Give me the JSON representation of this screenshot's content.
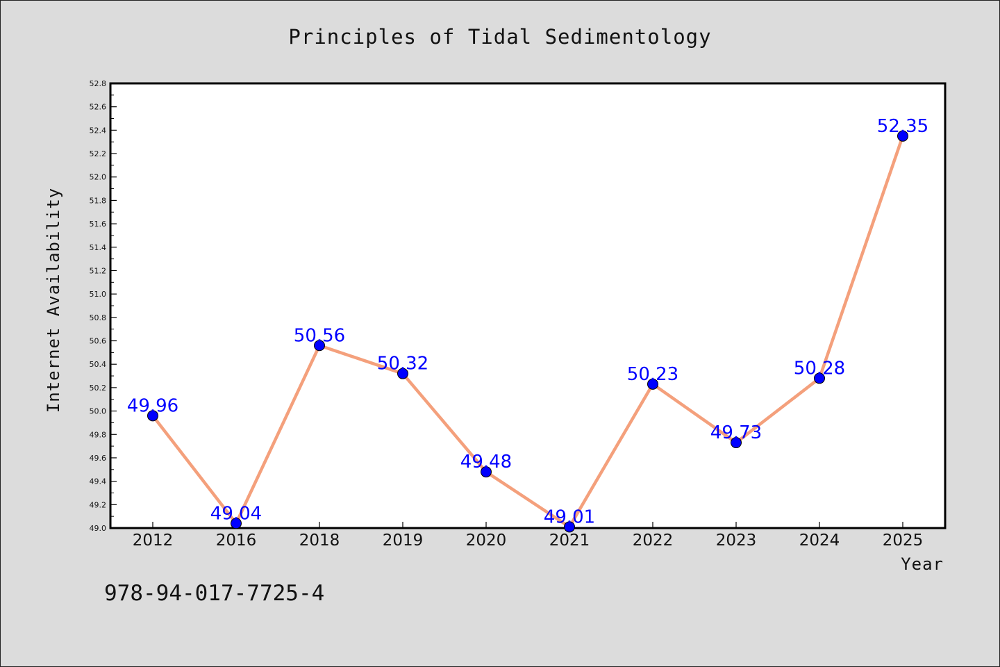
{
  "colors": {
    "background": "#dcdcdc",
    "plot_background": "#ffffff",
    "line": "#f4a07c",
    "marker": "#0000ff",
    "data_label": "#0000ff"
  },
  "footnote": "978-94-017-7725-4",
  "chart_data": {
    "type": "line",
    "title": "Principles of Tidal Sedimentology",
    "xlabel": "Year",
    "ylabel": "Internet Availability",
    "categories": [
      "2012",
      "2016",
      "2018",
      "2019",
      "2020",
      "2021",
      "2022",
      "2023",
      "2024",
      "2025"
    ],
    "values": [
      49.96,
      49.04,
      50.56,
      50.32,
      49.48,
      49.01,
      50.23,
      49.73,
      50.28,
      52.35
    ],
    "data_labels": [
      "49.96",
      "49.04",
      "50.56",
      "50.32",
      "49.48",
      "49.01",
      "50.23",
      "49.73",
      "50.28",
      "52.35"
    ],
    "ylim": [
      49.0,
      52.8
    ],
    "yticks": [
      "49.0",
      "49.2",
      "49.4",
      "49.6",
      "49.8",
      "50.0",
      "50.2",
      "50.4",
      "50.6",
      "50.8",
      "51.0",
      "51.2",
      "51.4",
      "51.6",
      "51.8",
      "52.0",
      "52.2",
      "52.4",
      "52.6",
      "52.8"
    ],
    "grid": false,
    "legend": "none"
  }
}
